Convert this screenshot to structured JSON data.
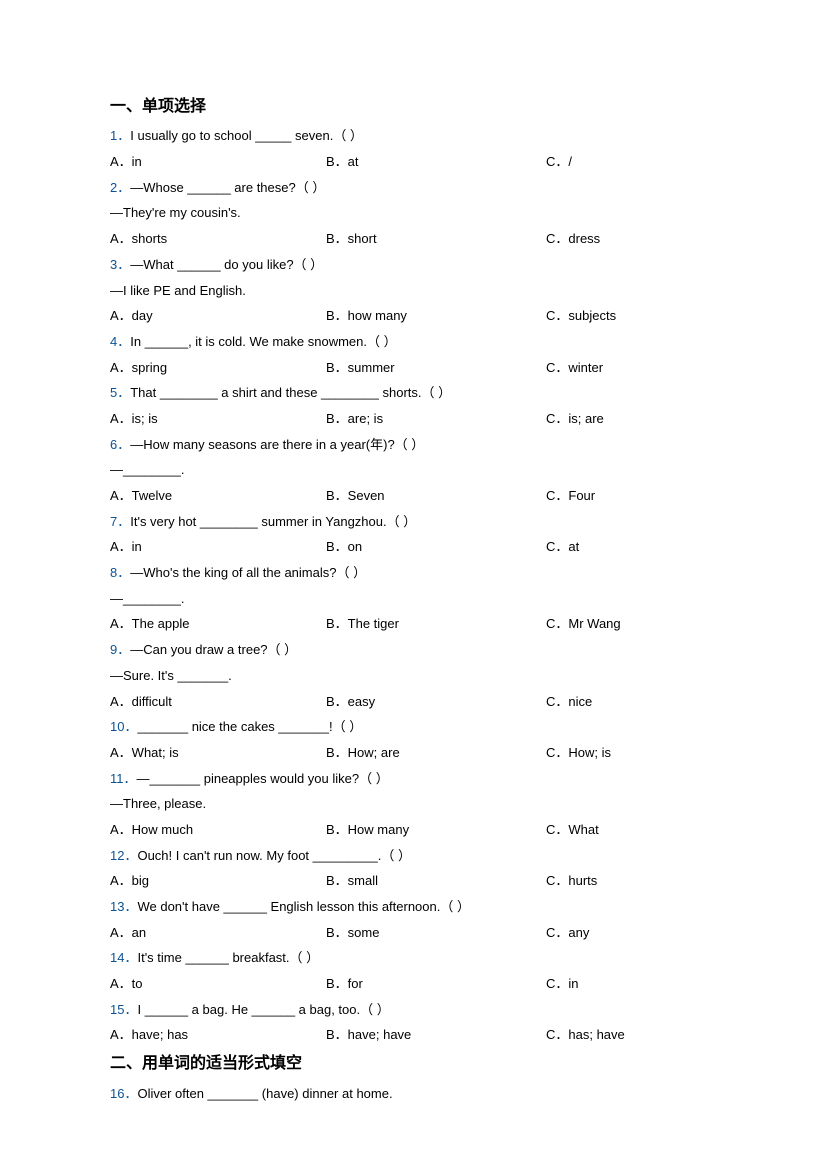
{
  "sections": {
    "s1": {
      "title": "一、单项选择"
    },
    "s2": {
      "title": "二、用单词的适当形式填空"
    }
  },
  "q1": {
    "num": "1．",
    "text": "I usually go to school _____ seven.（  ）",
    "a": "A．in",
    "b": "B．at",
    "c": "C．/"
  },
  "q2": {
    "num": "2．",
    "text": "—Whose ______ are these?（  ）",
    "sub": "—They're my cousin's.",
    "a": "A．shorts",
    "b": "B．short",
    "c": "C．dress"
  },
  "q3": {
    "num": "3．",
    "text": "—What ______ do you like?（  ）",
    "sub": "—I like PE and English.",
    "a": "A．day",
    "b": "B．how many",
    "c": "C．subjects"
  },
  "q4": {
    "num": "4．",
    "text": "In ______, it is cold. We make snowmen.（  ）",
    "a": "A．spring",
    "b": "B．summer",
    "c": "C．winter"
  },
  "q5": {
    "num": "5．",
    "text": "That ________ a shirt and these ________ shorts.（  ）",
    "a": "A．is; is",
    "b": "B．are; is",
    "c": "C．is; are"
  },
  "q6": {
    "num": "6．",
    "text": "—How many seasons are there in a year(年)?（  ）",
    "sub": "—________.",
    "a": "A．Twelve",
    "b": "B．Seven",
    "c": "C．Four"
  },
  "q7": {
    "num": "7．",
    "text": "It's very hot ________ summer in Yangzhou.（  ）",
    "a": "A．in",
    "b": "B．on",
    "c": "C．at"
  },
  "q8": {
    "num": "8．",
    "text": "—Who's the king of all the animals?（  ）",
    "sub": "—________.",
    "a": "A．The apple",
    "b": "B．The tiger",
    "c": "C．Mr Wang"
  },
  "q9": {
    "num": "9．",
    "text": "—Can you draw a tree?（  ）",
    "sub": "—Sure. It's _______.",
    "a": "A．difficult",
    "b": "B．easy",
    "c": "C．nice"
  },
  "q10": {
    "num": "10．",
    "text": "_______ nice the cakes _______!（  ）",
    "a": "A．What; is",
    "b": "B．How; are",
    "c": "C．How; is"
  },
  "q11": {
    "num": "11．",
    "text": "—_______ pineapples would you like?（  ）",
    "sub": "—Three, please.",
    "a": "A．How much",
    "b": "B．How many",
    "c": "C．What"
  },
  "q12": {
    "num": "12．",
    "text": "Ouch! I can't run now. My foot _________.（  ）",
    "a": "A．big",
    "b": "B．small",
    "c": "C．hurts"
  },
  "q13": {
    "num": "13．",
    "text": "We don't have ______ English lesson this afternoon.（  ）",
    "a": "A．an",
    "b": "B．some",
    "c": "C．any"
  },
  "q14": {
    "num": "14．",
    "text": "It's time ______ breakfast.（  ）",
    "a": "A．to",
    "b": "B．for",
    "c": "C．in"
  },
  "q15": {
    "num": "15．",
    "text": "I ______ a bag. He ______ a bag, too.（  ）",
    "a": "A．have; has",
    "b": "B．have; have",
    "c": "C．has; have"
  },
  "q16": {
    "num": "16．",
    "text": "Oliver often _______ (have) dinner at home."
  }
}
